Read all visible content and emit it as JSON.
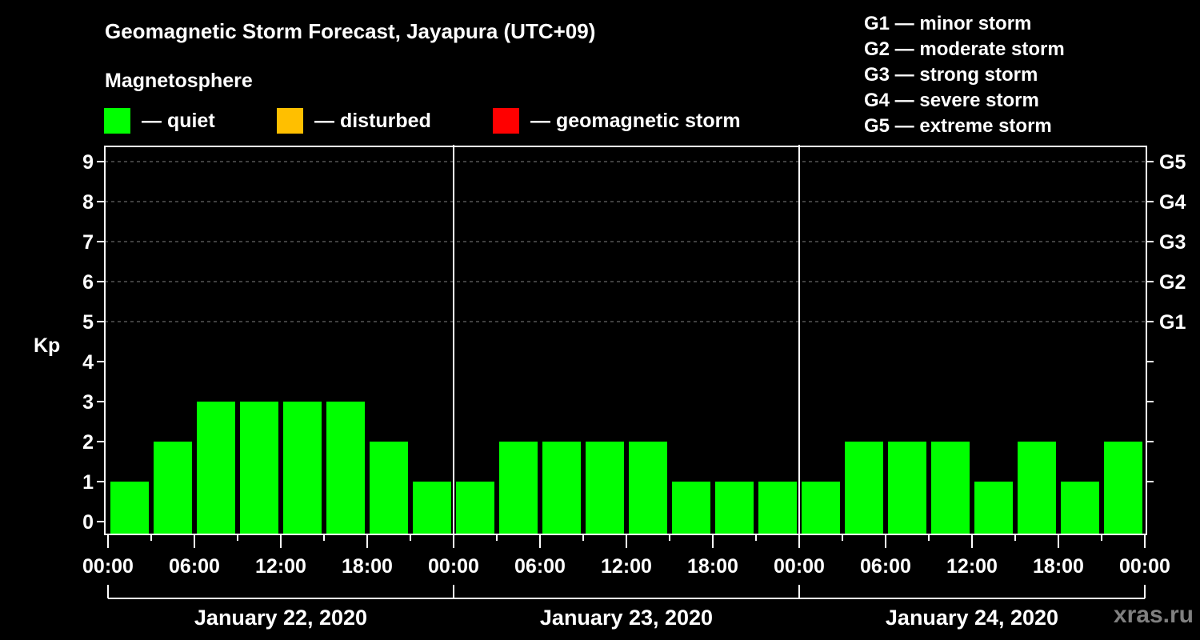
{
  "header": {
    "title": "Geomagnetic Storm Forecast, Jayapura (UTC+09)",
    "subtitle": "Magnetosphere"
  },
  "legend": [
    {
      "label": "— quiet",
      "color": "#00ff00"
    },
    {
      "label": "— disturbed",
      "color": "#ffbf00"
    },
    {
      "label": "— geomagnetic storm",
      "color": "#ff0000"
    }
  ],
  "g_scale": [
    "G1 — minor storm",
    "G2 — moderate storm",
    "G3 — strong storm",
    "G4 — severe storm",
    "G5 — extreme storm"
  ],
  "watermark": "xras.ru",
  "chart_data": {
    "type": "bar",
    "title": "Geomagnetic Storm Forecast, Jayapura (UTC+09)",
    "ylabel": "Kp",
    "ylim": [
      0,
      9
    ],
    "yticks": [
      0,
      1,
      2,
      3,
      4,
      5,
      6,
      7,
      8,
      9
    ],
    "right_axis": {
      "ticks": [
        5,
        6,
        7,
        8,
        9
      ],
      "labels": [
        "G1",
        "G2",
        "G3",
        "G4",
        "G5"
      ]
    },
    "xtick_labels": [
      "00:00",
      "06:00",
      "12:00",
      "18:00",
      "00:00",
      "06:00",
      "12:00",
      "18:00",
      "00:00",
      "06:00",
      "12:00",
      "18:00",
      "00:00"
    ],
    "days": [
      "January 22, 2020",
      "January 23, 2020",
      "January 24, 2020"
    ],
    "interval_hours": 3,
    "grid": "horizontal dashed at Kp 5-9",
    "colors": {
      "quiet": "#00ff00",
      "disturbed": "#ffbf00",
      "storm": "#ff0000"
    },
    "series": [
      {
        "name": "Kp",
        "values": [
          1,
          2,
          3,
          3,
          3,
          3,
          2,
          1,
          1,
          2,
          2,
          2,
          2,
          1,
          1,
          1,
          1,
          2,
          2,
          2,
          1,
          2,
          1,
          2
        ],
        "status": [
          "quiet",
          "quiet",
          "quiet",
          "quiet",
          "quiet",
          "quiet",
          "quiet",
          "quiet",
          "quiet",
          "quiet",
          "quiet",
          "quiet",
          "quiet",
          "quiet",
          "quiet",
          "quiet",
          "quiet",
          "quiet",
          "quiet",
          "quiet",
          "quiet",
          "quiet",
          "quiet",
          "quiet"
        ]
      }
    ]
  }
}
